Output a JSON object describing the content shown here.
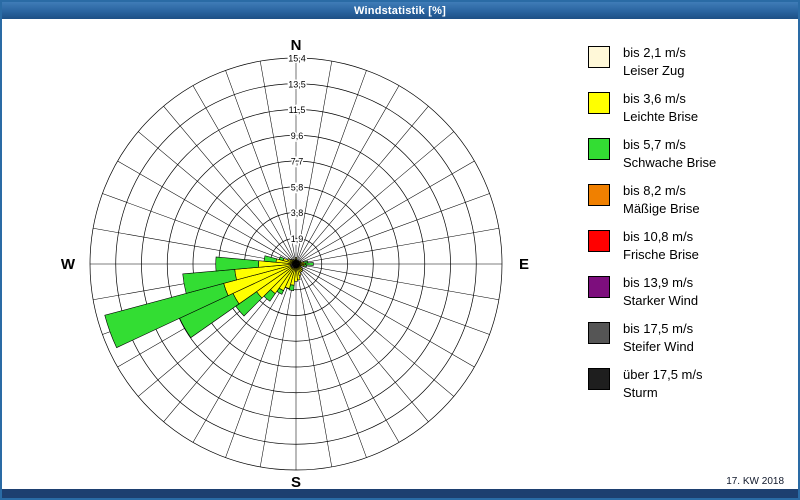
{
  "header": {
    "title": "Windstatistik [%]"
  },
  "footer": {
    "week_label": "17. KW 2018"
  },
  "chart_data": {
    "type": "wind-rose",
    "unit": "%",
    "max": 15.4,
    "sector_width_deg": 10,
    "grid": {
      "rings": 8,
      "spokes": 36
    },
    "ring_labels": [
      "1,9",
      "3,8",
      "5,8",
      "7,7",
      "9,6",
      "11,5",
      "13,5",
      "15,4"
    ],
    "compass": {
      "north": "N",
      "east": "E",
      "south": "S",
      "west": "W"
    },
    "classes": [
      {
        "label_speed": "bis 2,1 m/s",
        "label_name": "Leiser Zug",
        "color": "#FFF8D8"
      },
      {
        "label_speed": "bis 3,6 m/s",
        "label_name": "Leichte Brise",
        "color": "#FFFF00"
      },
      {
        "label_speed": "bis 5,7 m/s",
        "label_name": "Schwache Brise",
        "color": "#33DD33"
      },
      {
        "label_speed": "bis 8,2 m/s",
        "label_name": "Mäßige Brise",
        "color": "#F08000"
      },
      {
        "label_speed": "bis 10,8 m/s",
        "label_name": "Frische Brise",
        "color": "#FF0000"
      },
      {
        "label_speed": "bis 13,9 m/s",
        "label_name": "Starker Wind",
        "color": "#7D0E7D"
      },
      {
        "label_speed": "bis 17,5 m/s",
        "label_name": "Steifer Wind",
        "color": "#555555"
      },
      {
        "label_speed": "über 17,5 m/s",
        "label_name": "Sturm",
        "color": "#1E1E1E"
      }
    ],
    "sectors": [
      {
        "deg": 0,
        "parts": [
          0.2,
          0.3
        ]
      },
      {
        "deg": 20,
        "parts": [
          0.1,
          0.2
        ]
      },
      {
        "deg": 40,
        "parts": [
          0.1,
          0.2
        ]
      },
      {
        "deg": 60,
        "parts": [
          0.1,
          0.3
        ]
      },
      {
        "deg": 80,
        "parts": [
          0.2,
          0.4,
          0.3
        ]
      },
      {
        "deg": 90,
        "parts": [
          0.2,
          0.5,
          0.6
        ]
      },
      {
        "deg": 100,
        "parts": [
          0.2,
          0.4,
          0.2
        ]
      },
      {
        "deg": 110,
        "parts": [
          0.1,
          0.3
        ]
      },
      {
        "deg": 120,
        "parts": [
          0.1,
          0.3
        ]
      },
      {
        "deg": 130,
        "parts": [
          0.2,
          0.4
        ]
      },
      {
        "deg": 140,
        "parts": [
          0.2,
          0.5
        ]
      },
      {
        "deg": 150,
        "parts": [
          0.2,
          0.5
        ]
      },
      {
        "deg": 160,
        "parts": [
          0.2,
          0.7
        ]
      },
      {
        "deg": 170,
        "parts": [
          0.3,
          0.9
        ]
      },
      {
        "deg": 180,
        "parts": [
          0.3,
          1.0
        ]
      },
      {
        "deg": 190,
        "parts": [
          0.3,
          1.3,
          0.4
        ]
      },
      {
        "deg": 200,
        "parts": [
          0.3,
          1.6
        ]
      },
      {
        "deg": 210,
        "parts": [
          0.3,
          1.9,
          0.3
        ]
      },
      {
        "deg": 220,
        "parts": [
          0.4,
          2.3,
          0.7
        ]
      },
      {
        "deg": 230,
        "parts": [
          0.4,
          3.2,
          1.9
        ]
      },
      {
        "deg": 240,
        "parts": [
          0.4,
          4.8,
          4.4
        ]
      },
      {
        "deg": 250,
        "parts": [
          0.4,
          5.2,
          9.2
        ]
      },
      {
        "deg": 260,
        "parts": [
          0.4,
          4.2,
          3.9
        ]
      },
      {
        "deg": 270,
        "parts": [
          0.4,
          2.4,
          3.2
        ]
      },
      {
        "deg": 280,
        "parts": [
          0.3,
          1.2,
          0.9
        ]
      },
      {
        "deg": 290,
        "parts": [
          0.2,
          0.8,
          0.3
        ]
      },
      {
        "deg": 300,
        "parts": [
          0.2,
          0.5
        ]
      },
      {
        "deg": 310,
        "parts": [
          0.1,
          0.4
        ]
      },
      {
        "deg": 320,
        "parts": [
          0.1,
          0.3
        ]
      },
      {
        "deg": 330,
        "parts": [
          0.1,
          0.3
        ]
      },
      {
        "deg": 340,
        "parts": [
          0.1,
          0.2
        ]
      },
      {
        "deg": 350,
        "parts": [
          0.1,
          0.2
        ]
      }
    ]
  }
}
